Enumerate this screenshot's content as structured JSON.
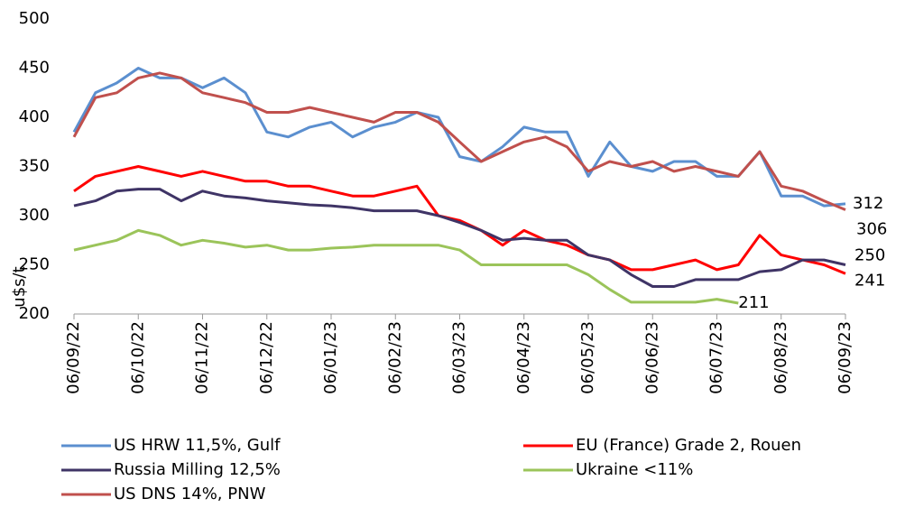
{
  "chart_data": {
    "type": "line",
    "y_label": "u$s/t",
    "categories": [
      "06/09/22",
      null,
      null,
      "06/10/22",
      null,
      null,
      "06/11/22",
      null,
      null,
      "06/12/22",
      null,
      null,
      "06/01/23",
      null,
      null,
      "06/02/23",
      null,
      null,
      "06/03/23",
      null,
      null,
      "06/04/23",
      null,
      null,
      "06/05/23",
      null,
      null,
      "06/06/23",
      null,
      null,
      "06/07/23",
      null,
      null,
      "06/08/23",
      null,
      null,
      "06/09/23"
    ],
    "ylim": [
      200,
      500
    ],
    "yticks": [
      200,
      250,
      300,
      350,
      400,
      450,
      500
    ],
    "grid": false,
    "series": [
      {
        "name": "US HRW 11,5%, Gulf",
        "color": "#5b8fcf",
        "values": [
          385,
          425,
          435,
          450,
          440,
          440,
          430,
          440,
          425,
          385,
          380,
          390,
          395,
          380,
          390,
          395,
          405,
          400,
          360,
          355,
          370,
          390,
          385,
          385,
          340,
          375,
          350,
          345,
          355,
          355,
          340,
          340,
          365,
          320,
          320,
          310,
          312
        ]
      },
      {
        "name": "EU (France) Grade 2, Rouen",
        "color": "#ff0000",
        "values": [
          325,
          340,
          345,
          350,
          345,
          340,
          345,
          340,
          335,
          335,
          330,
          330,
          325,
          320,
          320,
          325,
          330,
          300,
          295,
          285,
          270,
          285,
          275,
          270,
          260,
          255,
          245,
          245,
          250,
          255,
          245,
          250,
          280,
          260,
          255,
          250,
          241
        ]
      },
      {
        "name": "Russia Milling 12,5%",
        "color": "#3f3466",
        "values": [
          310,
          315,
          325,
          327,
          327,
          315,
          325,
          320,
          318,
          315,
          313,
          311,
          310,
          308,
          305,
          305,
          305,
          300,
          293,
          285,
          275,
          277,
          275,
          275,
          260,
          255,
          240,
          228,
          228,
          235,
          235,
          235,
          243,
          245,
          255,
          255,
          250
        ]
      },
      {
        "name": "Ukraine <11%",
        "color": "#9bc45a",
        "values": [
          265,
          270,
          275,
          285,
          280,
          270,
          275,
          272,
          268,
          270,
          265,
          265,
          267,
          268,
          270,
          270,
          270,
          270,
          265,
          250,
          250,
          250,
          250,
          250,
          240,
          225,
          212,
          212,
          212,
          212,
          215,
          211,
          null,
          null,
          null,
          null,
          null
        ]
      },
      {
        "name": "US DNS 14%, PNW",
        "color": "#c0504d",
        "values": [
          380,
          420,
          425,
          440,
          445,
          440,
          425,
          420,
          415,
          405,
          405,
          410,
          405,
          400,
          395,
          405,
          405,
          395,
          375,
          355,
          365,
          375,
          380,
          370,
          345,
          355,
          350,
          355,
          345,
          350,
          345,
          340,
          365,
          330,
          325,
          315,
          306
        ]
      }
    ]
  }
}
